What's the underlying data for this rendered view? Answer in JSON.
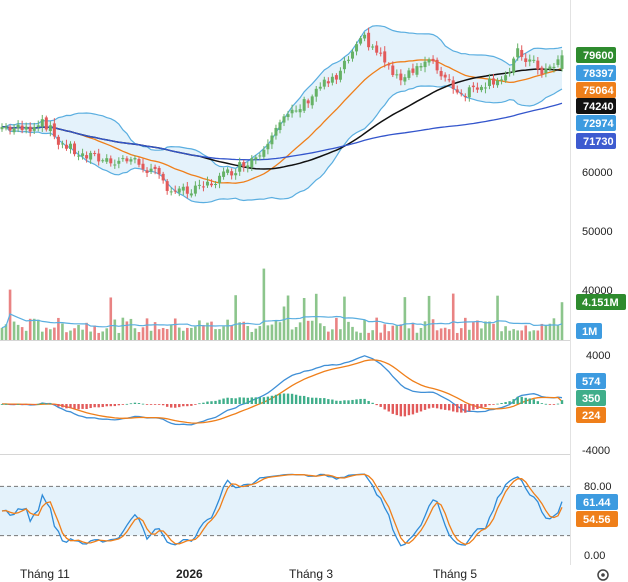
{
  "colors": {
    "up": "#66b266",
    "down": "#e25a5a",
    "bb_band": "#5aaee0",
    "bb_fill": "#e4f2fb",
    "ma_black": "#111111",
    "ma_blue": "#3355cc",
    "ma_orange": "#ef7f1a",
    "vol_avg": "#5aaee0",
    "macd_line": "#3f8fd6",
    "signal_line": "#ef7f1a",
    "hist_up": "#3fae8a",
    "hist_down": "#e25a5a",
    "stoch_k": "#2e8bd8",
    "stoch_d": "#ef7f1a",
    "stoch_fill": "#e4f2fb"
  },
  "price_panel": {
    "ticks": [
      "60000",
      "50000",
      "40000"
    ],
    "tags": [
      {
        "label": "79600",
        "bg": "#2e8b2e",
        "fg": "#ffffff"
      },
      {
        "label": "78397",
        "bg": "#3d9be0",
        "fg": "#ffffff"
      },
      {
        "label": "75064",
        "bg": "#ef7f1a",
        "fg": "#ffffff"
      },
      {
        "label": "74240",
        "bg": "#111111",
        "fg": "#ffffff"
      },
      {
        "label": "72974",
        "bg": "#3d9be0",
        "fg": "#ffffff"
      },
      {
        "label": "71730",
        "bg": "#3d5bd0",
        "fg": "#ffffff"
      }
    ]
  },
  "volume_panel": {
    "tags": [
      {
        "label": "4.151M",
        "bg": "#2e8b2e",
        "fg": "#ffffff"
      },
      {
        "label": "1M",
        "bg": "#3d9be0",
        "fg": "#ffffff"
      }
    ]
  },
  "macd_panel": {
    "ticks": [
      "4000",
      "-4000"
    ],
    "tags": [
      {
        "label": "574",
        "bg": "#3d9be0",
        "fg": "#ffffff"
      },
      {
        "label": "350",
        "bg": "#3fae8a",
        "fg": "#ffffff"
      },
      {
        "label": "224",
        "bg": "#ef7f1a",
        "fg": "#ffffff"
      }
    ]
  },
  "stoch_panel": {
    "ticks": [
      "80.00",
      "0.00"
    ],
    "tags": [
      {
        "label": "61.44",
        "bg": "#3d9be0",
        "fg": "#ffffff"
      },
      {
        "label": "54.56",
        "bg": "#ef7f1a",
        "fg": "#ffffff"
      }
    ],
    "upper_band": 80,
    "lower_band": 20
  },
  "x_axis": {
    "labels": [
      {
        "label": "Tháng 11",
        "bold": false
      },
      {
        "label": "2026",
        "bold": true
      },
      {
        "label": "Tháng 3",
        "bold": false
      },
      {
        "label": "Tháng 5",
        "bold": false
      }
    ]
  },
  "gear_icon": "gear-icon",
  "chart_data": {
    "type": "candlestick",
    "price": {
      "ylim": [
        35000,
        84000
      ],
      "last_close": 79600,
      "bollinger_upper_last": 78397,
      "bollinger_mid_last": 75064,
      "bollinger_lower_last": 72974,
      "ma_black_last": 74240,
      "ma_blue_last": 71730
    },
    "volume": {
      "last": "4.151M",
      "average_ref": "1M"
    },
    "macd": {
      "macd": 574,
      "histogram": 350,
      "signal": 224
    },
    "stochastic": {
      "k": 61.44,
      "d": 54.56
    }
  }
}
